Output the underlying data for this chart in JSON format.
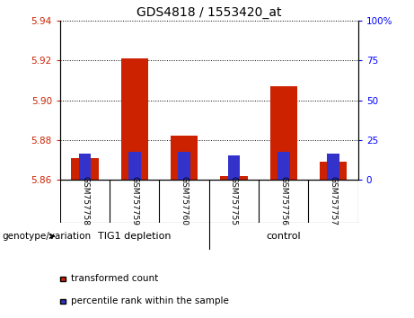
{
  "title": "GDS4818 / 1553420_at",
  "samples": [
    "GSM757758",
    "GSM757759",
    "GSM757760",
    "GSM757755",
    "GSM757756",
    "GSM757757"
  ],
  "red_values": [
    5.871,
    5.921,
    5.882,
    5.862,
    5.907,
    5.869
  ],
  "blue_values": [
    5.873,
    5.874,
    5.874,
    5.872,
    5.874,
    5.873
  ],
  "ymin": 5.86,
  "ymax": 5.94,
  "y_ticks": [
    5.86,
    5.88,
    5.9,
    5.92,
    5.94
  ],
  "y_tick_labels": [
    "5.86",
    "5.88",
    "5.90",
    "5.92",
    "5.94"
  ],
  "y2_ticks": [
    0,
    25,
    50,
    75,
    100
  ],
  "y2_tick_labels": [
    "0",
    "25",
    "50",
    "75",
    "100%"
  ],
  "red_color": "#cc2200",
  "blue_color": "#3333cc",
  "bar_width": 0.55,
  "blue_bar_width": 0.25,
  "background_color": "#ffffff",
  "title_fontsize": 10,
  "tick_fontsize": 7.5,
  "sample_fontsize": 6.5,
  "group_fontsize": 8,
  "legend_fontsize": 7.5,
  "legend_labels": [
    "transformed count",
    "percentile rank within the sample"
  ],
  "genotype_label": "genotype/variation",
  "group_label_1": "TIG1 depletion",
  "group_label_2": "control",
  "gray_color": "#c8c8c8",
  "green_color": "#90ee90"
}
